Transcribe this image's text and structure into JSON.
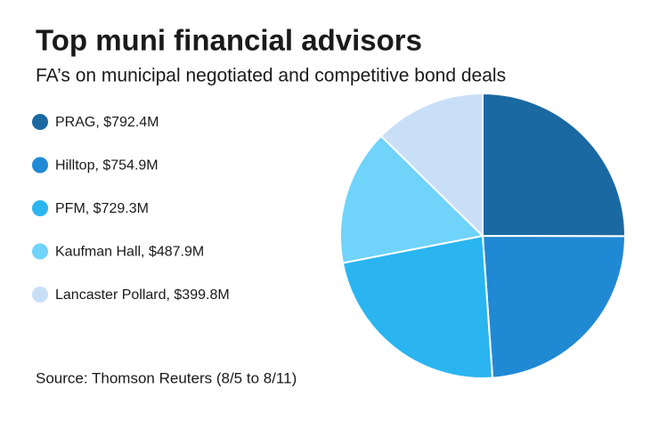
{
  "chart_data": {
    "type": "pie",
    "title": "Top muni financial advisors",
    "subtitle": "FA’s on municipal negotiated and competitive bond deals",
    "categories": [
      "PRAG, $792.4M",
      "Hilltop, $754.9M",
      "PFM, $729.3M",
      "Kaufman Hall, $487.9M",
      "Lancaster Pollard, $399.8M"
    ],
    "values": [
      792.4,
      754.9,
      729.3,
      487.9,
      399.8
    ],
    "colors": [
      "#1b69a2",
      "#2089d4",
      "#2ab5f0",
      "#70d3fa",
      "#c9dff7"
    ],
    "source": "Source: Thomson Reuters (8/5 to 8/11)"
  }
}
